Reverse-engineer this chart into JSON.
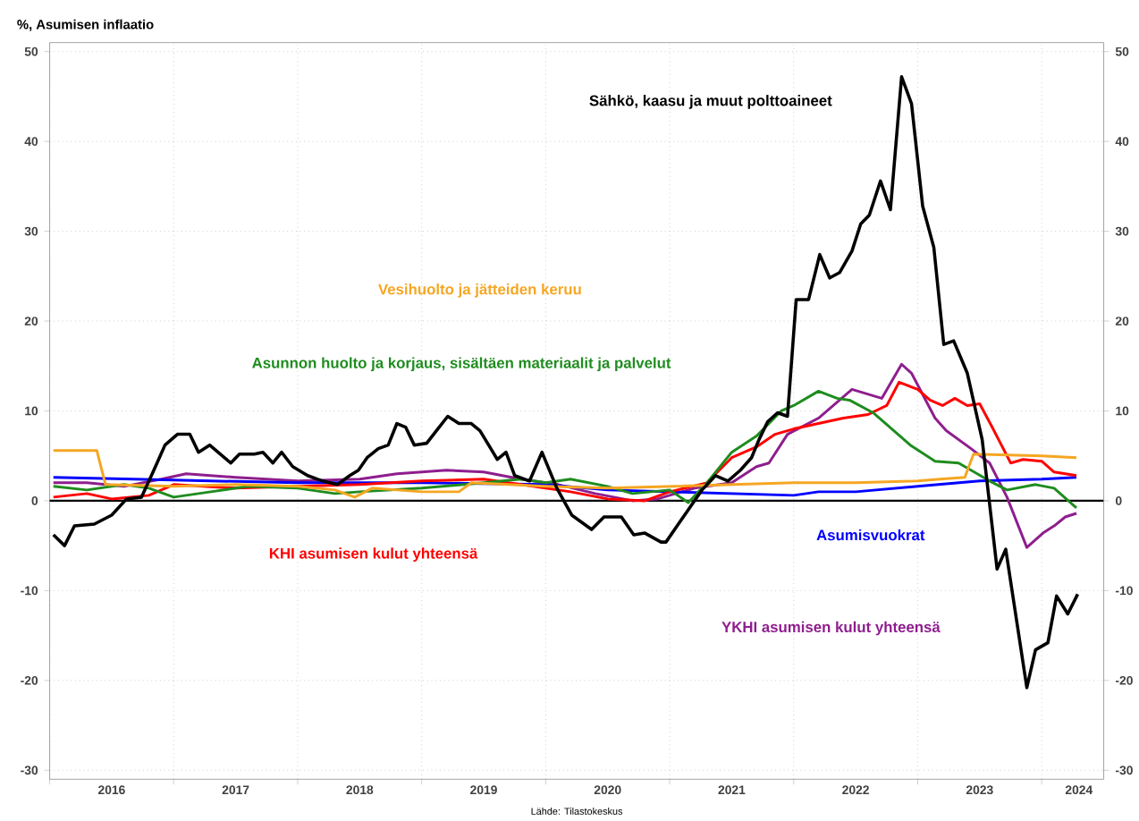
{
  "chart_data": {
    "type": "line",
    "ylabel": "%, Asumisen inflaatio",
    "annotations": [
      "Lähde: Tilastokeskus"
    ],
    "xlim": [
      2016,
      2024.5
    ],
    "ylim": [
      -31,
      51
    ],
    "y2lim": [
      -31,
      51
    ],
    "xticks": [
      {
        "value": 2016,
        "label": null
      },
      {
        "value": 2016.5,
        "label": "2016"
      },
      {
        "value": 2017,
        "label": null
      },
      {
        "value": 2017.5,
        "label": "2017"
      },
      {
        "value": 2018,
        "label": null
      },
      {
        "value": 2018.5,
        "label": "2018"
      },
      {
        "value": 2019,
        "label": null
      },
      {
        "value": 2019.5,
        "label": "2019"
      },
      {
        "value": 2020,
        "label": null
      },
      {
        "value": 2020.5,
        "label": "2020"
      },
      {
        "value": 2021,
        "label": null
      },
      {
        "value": 2021.5,
        "label": "2021"
      },
      {
        "value": 2022,
        "label": null
      },
      {
        "value": 2022.5,
        "label": "2022"
      },
      {
        "value": 2023,
        "label": null
      },
      {
        "value": 2023.5,
        "label": "2023"
      },
      {
        "value": 2024,
        "label": null
      },
      {
        "value": 2024.3,
        "label": "2024"
      }
    ],
    "yticks": [
      -30,
      -20,
      -10,
      0,
      10,
      20,
      30,
      40,
      50
    ],
    "y2ticks": [
      -30,
      -20,
      -10,
      0,
      10,
      20,
      30,
      40,
      50
    ],
    "grid": true,
    "line_style": "solid",
    "ref_lines": [
      {
        "axis": "y",
        "value": 0,
        "color": "#000000"
      }
    ],
    "series": [
      {
        "name": "Sähkö, kaasu ja muut polttoaineet",
        "color": "#000000",
        "x": [
          2016.03,
          2016.12,
          2016.2,
          2016.36,
          2016.5,
          2016.62,
          2016.74,
          2016.84,
          2016.93,
          2017.03,
          2017.13,
          2017.2,
          2017.29,
          2017.46,
          2017.53,
          2017.65,
          2017.72,
          2017.8,
          2017.87,
          2017.96,
          2018.08,
          2018.2,
          2018.32,
          2018.42,
          2018.49,
          2018.56,
          2018.65,
          2018.73,
          2018.8,
          2018.87,
          2018.94,
          2019.04,
          2019.13,
          2019.21,
          2019.3,
          2019.4,
          2019.47,
          2019.54,
          2019.61,
          2019.68,
          2019.75,
          2019.87,
          2019.97,
          2020.09,
          2020.21,
          2020.37,
          2020.47,
          2020.61,
          2020.71,
          2020.8,
          2020.93,
          2020.97,
          2021.14,
          2021.26,
          2021.37,
          2021.47,
          2021.57,
          2021.66,
          2021.72,
          2021.79,
          2021.87,
          2021.95,
          2022.02,
          2022.12,
          2022.21,
          2022.29,
          2022.37,
          2022.47,
          2022.54,
          2022.61,
          2022.7,
          2022.78,
          2022.87,
          2022.95,
          2023.04,
          2023.13,
          2023.21,
          2023.29,
          2023.4,
          2023.52,
          2023.64,
          2023.71,
          2023.88,
          2023.95,
          2024.05,
          2024.12,
          2024.21,
          2024.29
        ],
        "values": [
          -3.8,
          -5,
          -2.8,
          -2.6,
          -1.6,
          0.2,
          0.4,
          3.4,
          6.2,
          7.4,
          7.4,
          5.4,
          6.2,
          4.2,
          5.2,
          5.2,
          5.4,
          4.2,
          5.4,
          3.8,
          2.8,
          2.2,
          1.8,
          2.8,
          3.4,
          4.8,
          5.8,
          6.2,
          8.6,
          8.2,
          6.2,
          6.4,
          8.0,
          9.4,
          8.6,
          8.6,
          7.8,
          6.2,
          4.6,
          5.4,
          2.8,
          2.2,
          5.4,
          1.4,
          -1.6,
          -3.2,
          -1.8,
          -1.8,
          -3.8,
          -3.6,
          -4.6,
          -4.6,
          -1.2,
          1.2,
          2.8,
          2.2,
          3.4,
          4.8,
          6.8,
          8.8,
          9.8,
          9.4,
          22.4,
          22.4,
          27.4,
          24.8,
          25.4,
          27.8,
          30.8,
          31.8,
          35.6,
          32.4,
          47.2,
          44.2,
          32.8,
          28.2,
          17.4,
          17.8,
          14.2,
          6.8,
          -7.6,
          -5.4,
          -20.8,
          -16.6,
          -15.8,
          -10.6,
          -12.6,
          -10.4
        ]
      },
      {
        "name": "Vesihuolto ja jätteiden keruu",
        "color": "#f5a623",
        "x": [
          2016.03,
          2016.3,
          2016.38,
          2016.45,
          2017.0,
          2017.5,
          2018.0,
          2018.3,
          2018.46,
          2018.6,
          2019.0,
          2019.3,
          2019.4,
          2020.0,
          2020.5,
          2021.0,
          2021.5,
          2022.0,
          2022.5,
          2023.0,
          2023.18,
          2023.38,
          2023.45,
          2024.0,
          2024.28
        ],
        "values": [
          5.6,
          5.6,
          5.6,
          1.8,
          1.6,
          1.8,
          1.6,
          1.2,
          0.4,
          1.4,
          1.0,
          1.0,
          2.0,
          1.6,
          1.4,
          1.6,
          1.8,
          2.0,
          2.0,
          2.2,
          2.4,
          2.6,
          5.2,
          5.0,
          4.8
        ]
      },
      {
        "name": "Asunnon huolto ja korjaus, sisältäen materiaalit ja palvelut",
        "color": "#1e8c1e",
        "x": [
          2016.03,
          2016.3,
          2016.6,
          2016.8,
          2017.0,
          2017.3,
          2017.6,
          2018.0,
          2018.3,
          2018.5,
          2019.0,
          2019.5,
          2019.8,
          2020.0,
          2020.2,
          2020.5,
          2020.7,
          2021.0,
          2021.15,
          2021.3,
          2021.5,
          2021.7,
          2021.9,
          2022.0,
          2022.2,
          2022.35,
          2022.45,
          2022.64,
          2022.94,
          2023.14,
          2023.33,
          2023.58,
          2023.72,
          2023.95,
          2024.1,
          2024.28
        ],
        "values": [
          1.6,
          1.2,
          1.8,
          1.4,
          0.4,
          1.0,
          1.6,
          1.4,
          0.8,
          1.0,
          1.4,
          2.0,
          2.4,
          2.0,
          2.4,
          1.6,
          0.8,
          1.2,
          -0.2,
          2.0,
          5.4,
          7.2,
          10.0,
          10.6,
          12.2,
          11.4,
          11.2,
          9.8,
          6.2,
          4.4,
          4.2,
          2.2,
          1.2,
          1.8,
          1.4,
          -0.8
        ]
      },
      {
        "name": "KHI asumisen kulut yhteensä",
        "color": "#ff0000",
        "x": [
          2016.03,
          2016.3,
          2016.5,
          2016.8,
          2017.0,
          2017.5,
          2018.0,
          2018.5,
          2019.0,
          2019.5,
          2019.9,
          2020.2,
          2020.5,
          2020.8,
          2021.0,
          2021.3,
          2021.5,
          2021.7,
          2021.85,
          2022.0,
          2022.2,
          2022.4,
          2022.6,
          2022.75,
          2022.85,
          2023.0,
          2023.1,
          2023.2,
          2023.3,
          2023.4,
          2023.5,
          2023.6,
          2023.75,
          2023.85,
          2024.0,
          2024.1,
          2024.28
        ],
        "values": [
          0.4,
          0.8,
          0.2,
          0.6,
          1.8,
          1.4,
          1.6,
          1.8,
          2.2,
          2.4,
          1.6,
          1.0,
          0.2,
          0.0,
          1.0,
          2.0,
          4.8,
          6.0,
          7.4,
          8.0,
          8.6,
          9.2,
          9.6,
          10.6,
          13.2,
          12.4,
          11.2,
          10.6,
          11.4,
          10.6,
          10.8,
          8.2,
          4.2,
          4.6,
          4.4,
          3.2,
          2.8
        ]
      },
      {
        "name": "Asumisvuokrat",
        "color": "#0000ff",
        "x": [
          2016.03,
          2017.0,
          2018.0,
          2019.0,
          2020.0,
          2020.5,
          2021.0,
          2021.5,
          2022.0,
          2022.2,
          2022.5,
          2023.0,
          2023.5,
          2024.0,
          2024.28
        ],
        "values": [
          2.6,
          2.3,
          2.0,
          2.0,
          1.8,
          1.2,
          1.0,
          0.8,
          0.6,
          1.0,
          1.0,
          1.6,
          2.2,
          2.4,
          2.6
        ]
      },
      {
        "name": "YKHI asumisen kulut yhteensä",
        "color": "#8e1e8e",
        "x": [
          2016.03,
          2016.3,
          2016.6,
          2016.9,
          2017.1,
          2017.5,
          2018.0,
          2018.5,
          2018.8,
          2019.2,
          2019.5,
          2019.8,
          2020.1,
          2020.4,
          2020.7,
          2020.9,
          2021.2,
          2021.5,
          2021.7,
          2021.8,
          2021.95,
          2022.2,
          2022.47,
          2022.71,
          2022.87,
          2022.95,
          2023.14,
          2023.23,
          2023.43,
          2023.58,
          2023.72,
          2023.88,
          2024.01,
          2024.1,
          2024.19,
          2024.28
        ],
        "values": [
          2.0,
          2.0,
          1.6,
          2.4,
          3.0,
          2.6,
          2.2,
          2.4,
          3.0,
          3.4,
          3.2,
          2.4,
          1.8,
          0.8,
          0.0,
          0.2,
          1.4,
          2.0,
          3.8,
          4.2,
          7.4,
          9.2,
          12.4,
          11.4,
          15.2,
          14.2,
          9.2,
          7.8,
          5.8,
          4.2,
          0.4,
          -5.2,
          -3.6,
          -2.8,
          -1.8,
          -1.4
        ]
      }
    ]
  }
}
